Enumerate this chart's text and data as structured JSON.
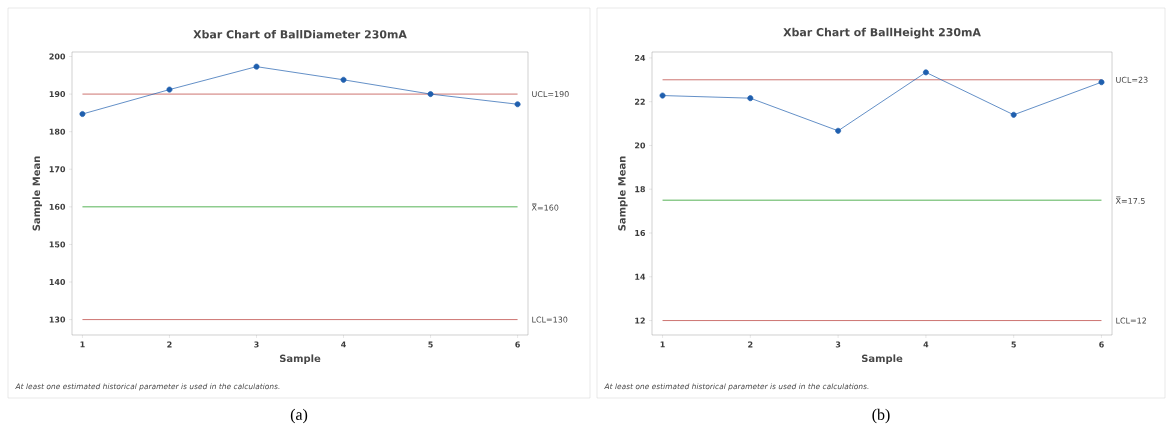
{
  "chart_data": [
    {
      "type": "line",
      "title": "Xbar Chart of BallDiameter 230mA",
      "xlabel": "Sample",
      "ylabel": "Sample Mean",
      "x": [
        1,
        2,
        3,
        4,
        5,
        6
      ],
      "series": [
        {
          "color": "#1f5fae",
          "values": [
            184.7,
            191.2,
            197.3,
            193.8,
            190.0,
            187.3
          ]
        }
      ],
      "marker": "circle",
      "line_style": "solid",
      "xlim": [
        0.88,
        6.12
      ],
      "ylim": [
        125.9,
        201.2
      ],
      "xticks": [
        1,
        2,
        3,
        4,
        5,
        6
      ],
      "yticks": [
        130,
        140,
        150,
        160,
        170,
        180,
        190,
        200
      ],
      "ref_lines": [
        {
          "axis": "y",
          "value": 190,
          "label": "UCL=190",
          "color": "#c0504d"
        },
        {
          "axis": "y",
          "value": 160,
          "label": "X̿=160",
          "color": "#2ca02c"
        },
        {
          "axis": "y",
          "value": 130,
          "label": "LCL=130",
          "color": "#c0504d"
        }
      ],
      "annotations": [
        "At least one estimated historical parameter is used in the calculations.",
        "(a)"
      ]
    },
    {
      "type": "line",
      "title": "Xbar Chart of BallHeight 230mA",
      "xlabel": "Sample",
      "ylabel": "Sample Mean",
      "x": [
        1,
        2,
        3,
        4,
        5,
        6
      ],
      "series": [
        {
          "color": "#1f5fae",
          "values": [
            22.28,
            22.16,
            20.67,
            23.34,
            21.4,
            22.89
          ]
        }
      ],
      "marker": "circle",
      "line_style": "solid",
      "xlim": [
        0.88,
        6.12
      ],
      "ylim": [
        11.34,
        24.27
      ],
      "xticks": [
        1,
        2,
        3,
        4,
        5,
        6
      ],
      "yticks": [
        12,
        14,
        16,
        18,
        20,
        22,
        24
      ],
      "ref_lines": [
        {
          "axis": "y",
          "value": 23,
          "label": "UCL=23",
          "color": "#c0504d"
        },
        {
          "axis": "y",
          "value": 17.5,
          "label": "X̿=17.5",
          "color": "#2ca02c"
        },
        {
          "axis": "y",
          "value": 12,
          "label": "LCL=12",
          "color": "#c0504d"
        }
      ],
      "annotations": [
        "At least one estimated historical parameter is used in the calculations.",
        "(b)"
      ]
    }
  ]
}
